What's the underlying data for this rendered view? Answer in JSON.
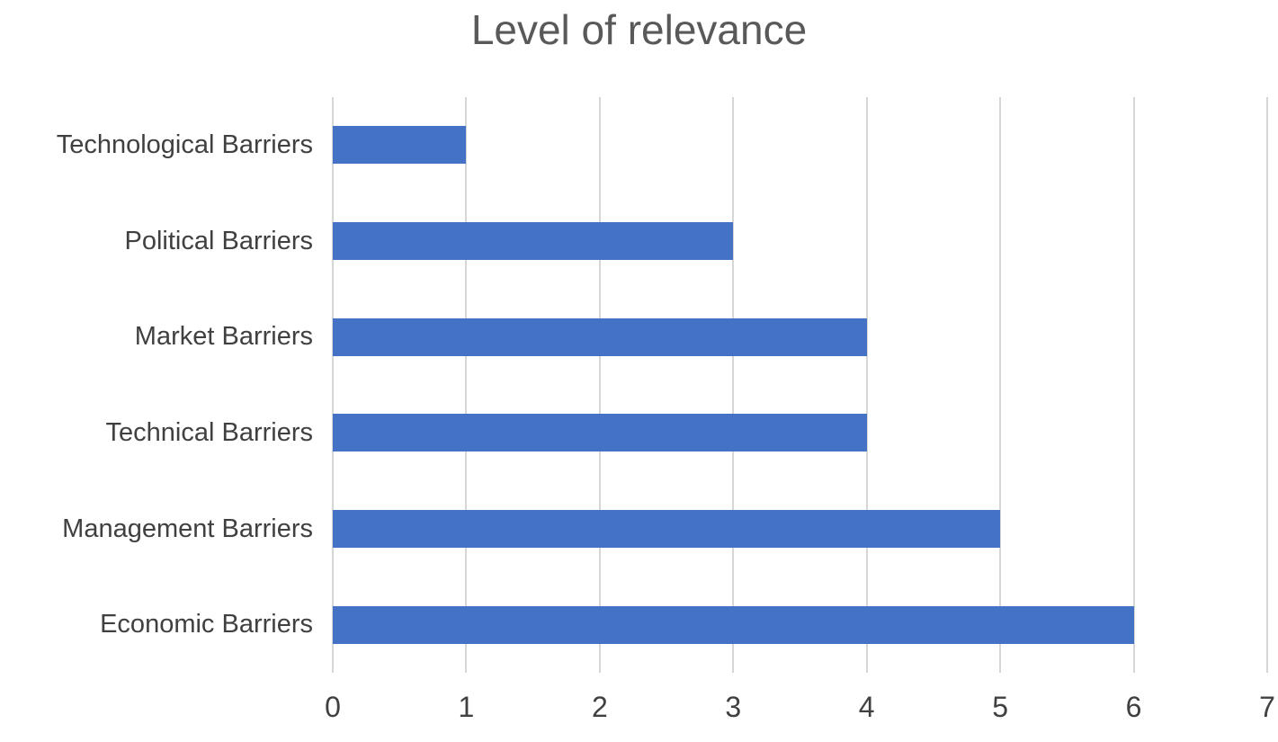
{
  "chart_data": {
    "type": "bar",
    "orientation": "horizontal",
    "title": "Level of relevance",
    "categories": [
      "Technological Barriers",
      "Political Barriers",
      "Market Barriers",
      "Technical Barriers",
      "Management Barriers",
      "Economic Barriers"
    ],
    "values": [
      1,
      3,
      4,
      4,
      5,
      6
    ],
    "xlim": [
      0,
      7
    ],
    "x_ticks": [
      0,
      1,
      2,
      3,
      4,
      5,
      6,
      7
    ],
    "grid": "vertical",
    "legend": "none",
    "xlabel": "",
    "ylabel": "",
    "bar_color": "#4472C4",
    "gridline_color": "#D6D6D6",
    "title_color": "#595959",
    "label_color": "#404040"
  }
}
